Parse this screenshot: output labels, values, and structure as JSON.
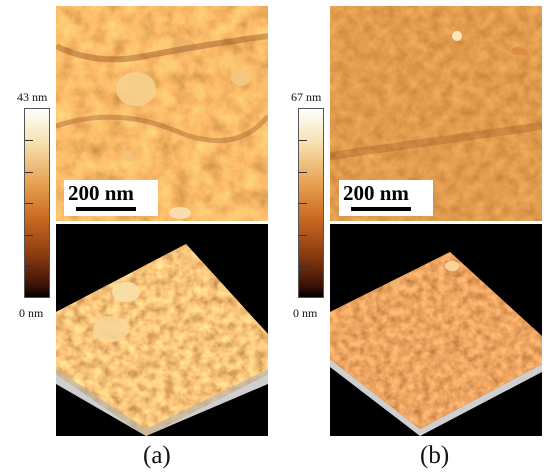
{
  "panels": [
    {
      "id": "a",
      "label": "(a)",
      "colorbar_max": "43 nm",
      "colorbar_min": "0 nm",
      "scalebar_text": "200 nm"
    },
    {
      "id": "b",
      "label": "(b)",
      "colorbar_max": "67 nm",
      "colorbar_min": "0 nm",
      "scalebar_text": "200 nm"
    }
  ],
  "colors": {
    "afm_light": "#f3c27a",
    "afm_mid": "#c46a22",
    "afm_dark": "#7a3410",
    "background_3d": "#000000"
  }
}
